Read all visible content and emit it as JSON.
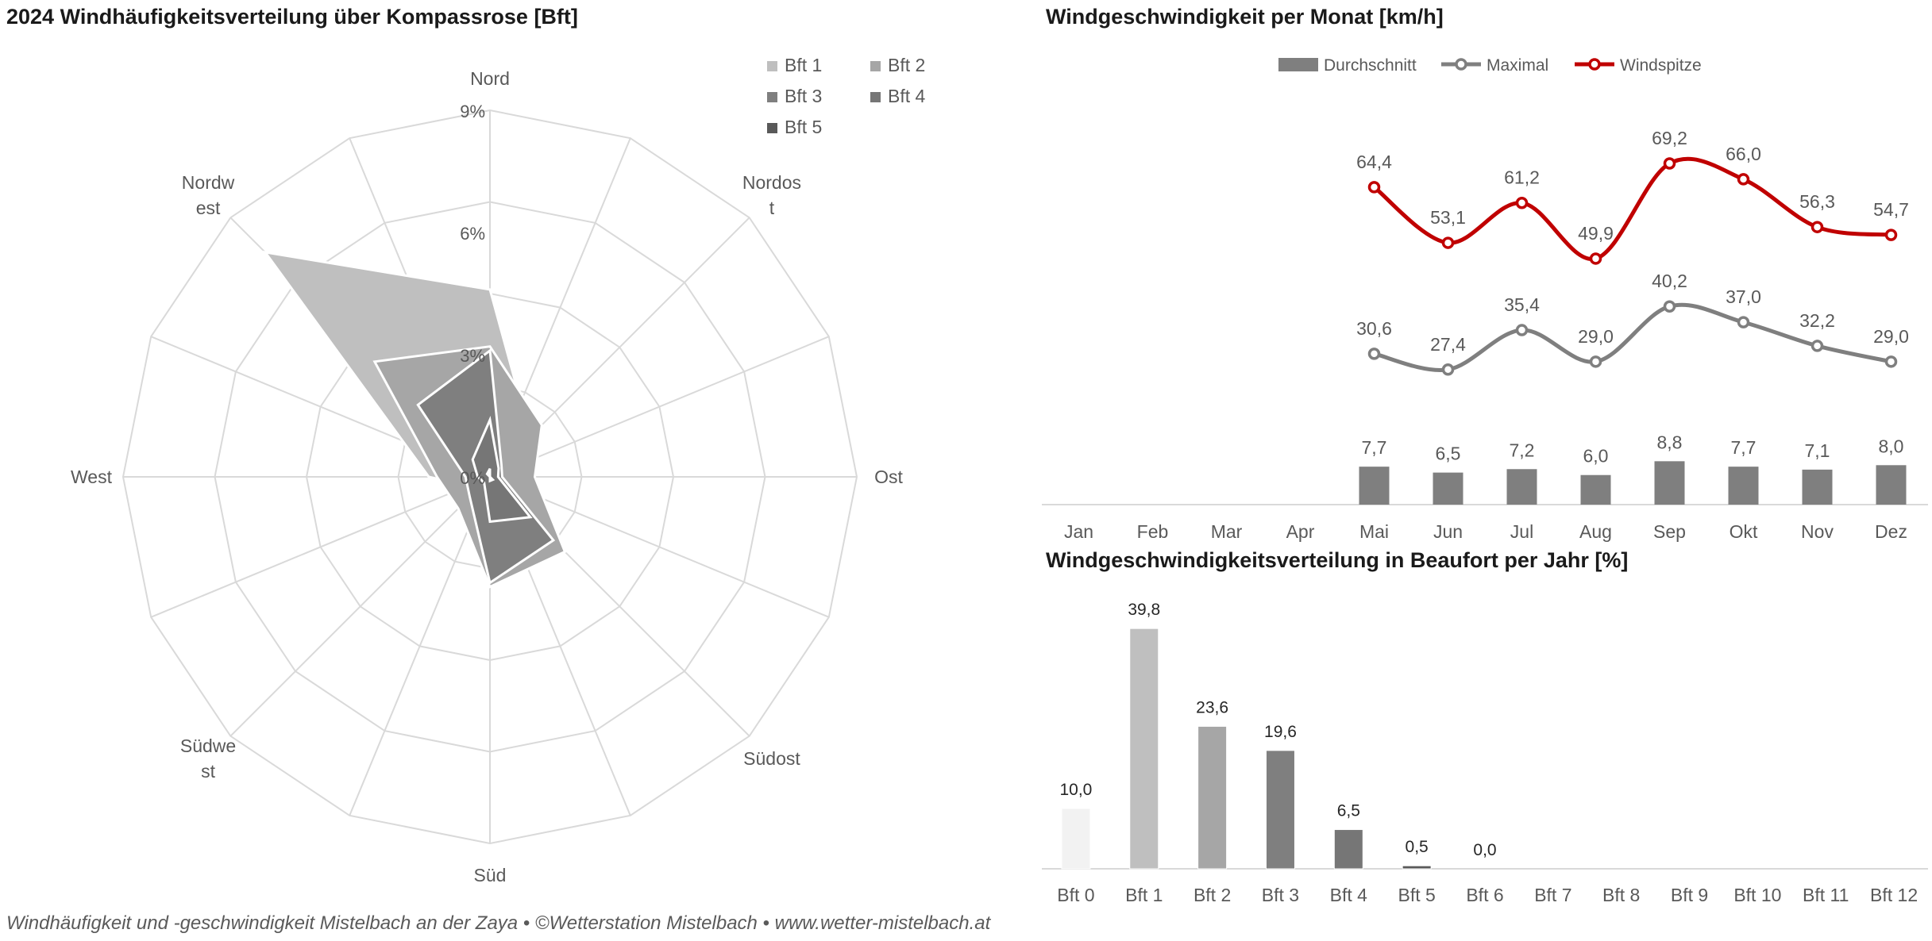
{
  "footer": "Windhäufigkeit und -geschwindigkeit Mistelbach an der Zaya  •  ©Wetterstation Mistelbach  •  www.wetter-mistelbach.at",
  "chart_data": [
    {
      "type": "radar",
      "title": "2024 Windhäufigkeitsverteilung über Kompassrose [Bft]",
      "directions": [
        "Nord",
        "Nordost",
        "Ost",
        "Südost",
        "Süd",
        "Südwest",
        "West",
        "Nordwest"
      ],
      "direction_labels": [
        "Nord",
        "Nordos\nt",
        "Ost",
        "Südost",
        "Süd",
        "Südwe\nst",
        "West",
        "Nordw\nest"
      ],
      "radial_ticks": [
        "0%",
        "3%",
        "6%",
        "9%"
      ],
      "rmax": 9,
      "legend": "top-right",
      "series": [
        {
          "name": "Bft 1",
          "color": "#bfbfbf",
          "values": [
            4.6,
            1.4,
            0.7,
            1.8,
            0.9,
            0.4,
            1.5,
            7.8
          ]
        },
        {
          "name": "Bft 2",
          "color": "#a6a6a6",
          "values": [
            3.2,
            1.8,
            1.1,
            2.6,
            2.7,
            1.1,
            1.3,
            4.0
          ]
        },
        {
          "name": "Bft 3",
          "color": "#7f7f7f",
          "values": [
            3.1,
            0.4,
            0.3,
            2.2,
            2.6,
            0.7,
            0.6,
            2.5
          ]
        },
        {
          "name": "Bft 4",
          "color": "#767676",
          "values": [
            1.4,
            0.3,
            0.2,
            1.4,
            1.1,
            0.2,
            0.3,
            0.6
          ]
        },
        {
          "name": "Bft 5",
          "color": "#595959",
          "values": [
            0.2,
            0.0,
            0.0,
            0.1,
            0.1,
            0.0,
            0.0,
            0.1
          ]
        }
      ]
    },
    {
      "type": "line",
      "title": "Windgeschwindigkeit per Monat [km/h]",
      "categories": [
        "Jan",
        "Feb",
        "Mar",
        "Apr",
        "Mai",
        "Jun",
        "Jul",
        "Aug",
        "Sep",
        "Okt",
        "Nov",
        "Dez"
      ],
      "legend": "top",
      "series": [
        {
          "name": "Durchschnitt",
          "type": "bar",
          "color": "#7f7f7f",
          "values": [
            null,
            null,
            null,
            null,
            7.7,
            6.5,
            7.2,
            6.0,
            8.8,
            7.7,
            7.1,
            8.0
          ],
          "labels": [
            "",
            "",
            "",
            "",
            "7,7",
            "6,5",
            "7,2",
            "6,0",
            "8,8",
            "7,7",
            "7,1",
            "8,0"
          ]
        },
        {
          "name": "Maximal",
          "type": "line",
          "color": "#7f7f7f",
          "values": [
            null,
            null,
            null,
            null,
            30.6,
            27.4,
            35.4,
            29.0,
            40.2,
            37.0,
            32.2,
            29.0
          ],
          "labels": [
            "",
            "",
            "",
            "",
            "30,6",
            "27,4",
            "35,4",
            "29,0",
            "40,2",
            "37,0",
            "32,2",
            "29,0"
          ]
        },
        {
          "name": "Windspitze",
          "type": "line",
          "color": "#c00000",
          "values": [
            null,
            null,
            null,
            null,
            64.4,
            53.1,
            61.2,
            49.9,
            69.2,
            66.0,
            56.3,
            54.7
          ],
          "labels": [
            "",
            "",
            "",
            "",
            "64,4",
            "53,1",
            "61,2",
            "49,9",
            "69,2",
            "66,0",
            "56,3",
            "54,7"
          ]
        }
      ]
    },
    {
      "type": "bar",
      "title": "Windgeschwindigkeitsverteilung in Beaufort per Jahr [%]",
      "categories": [
        "Bft 0",
        "Bft 1",
        "Bft 2",
        "Bft 3",
        "Bft 4",
        "Bft 5",
        "Bft 6",
        "Bft 7",
        "Bft 8",
        "Bft 9",
        "Bft 10",
        "Bft 11",
        "Bft 12"
      ],
      "values": [
        10.0,
        39.8,
        23.6,
        19.6,
        6.5,
        0.5,
        0.0,
        null,
        null,
        null,
        null,
        null,
        null
      ],
      "labels": [
        "10,0",
        "39,8",
        "23,6",
        "19,6",
        "6,5",
        "0,5",
        "0,0",
        "",
        "",
        "",
        "",
        "",
        ""
      ],
      "colors": [
        "#f2f2f2",
        "#bfbfbf",
        "#a6a6a6",
        "#7f7f7f",
        "#767676",
        "#595959",
        "#404040",
        "#262626",
        "#262626",
        "#262626",
        "#262626",
        "#262626",
        "#262626"
      ]
    }
  ]
}
